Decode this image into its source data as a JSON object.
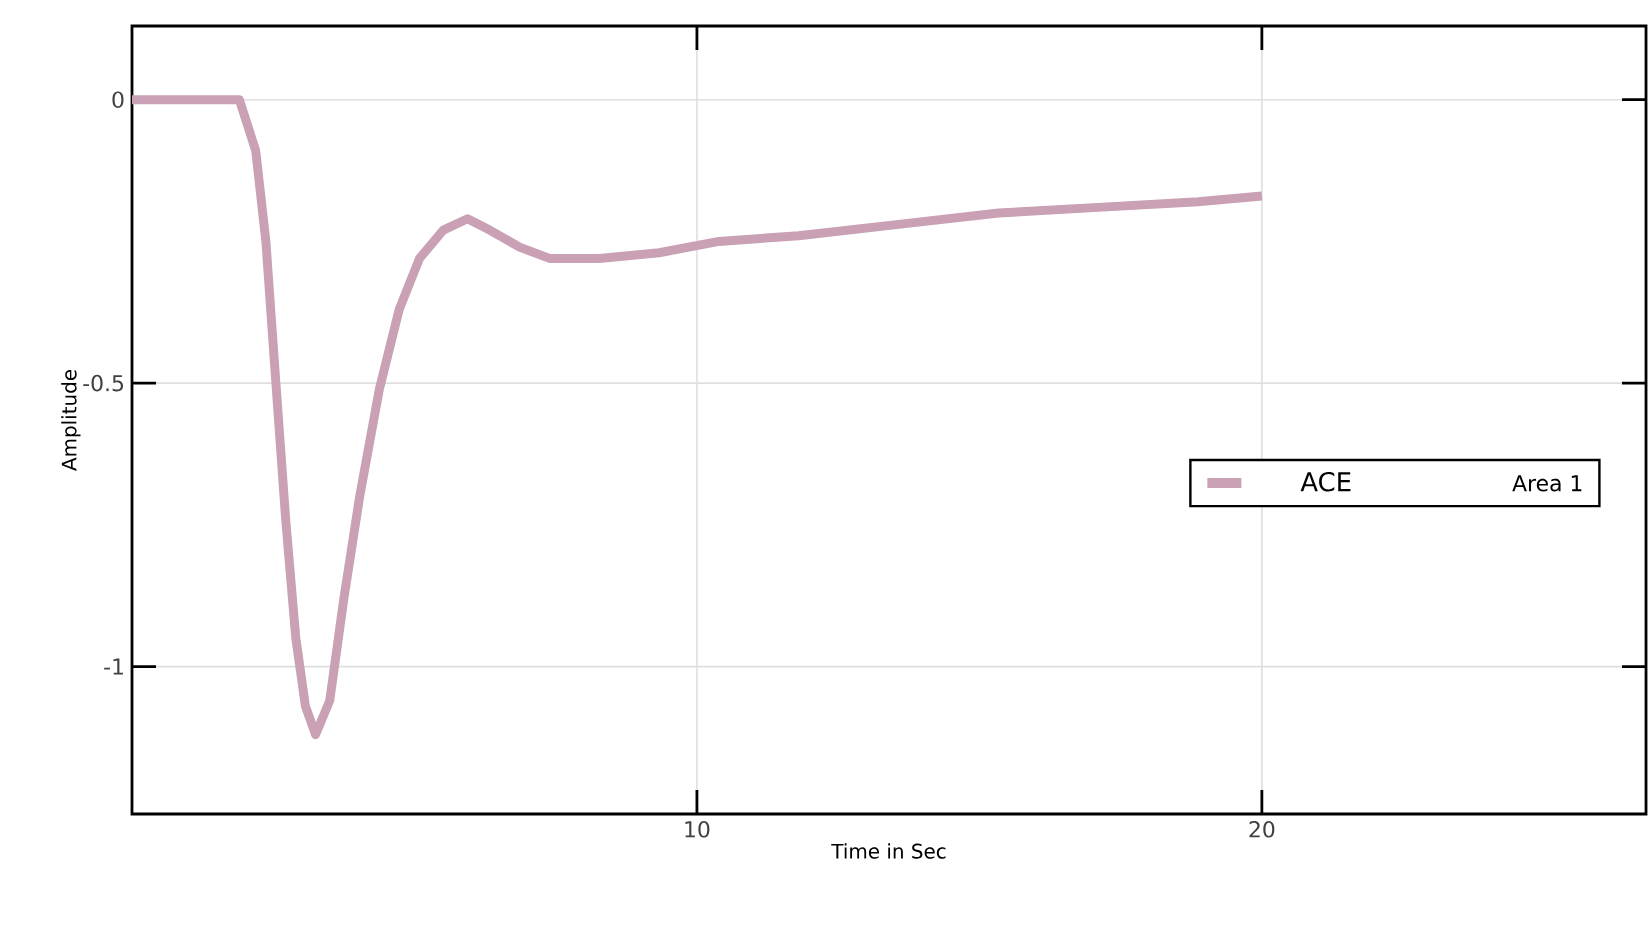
{
  "chart_data": {
    "type": "line",
    "xlabel": "Time in Sec",
    "ylabel": "Amplitude",
    "legend_title": "Area 1",
    "xlim": [
      0,
      26.8
    ],
    "ylim": [
      -1.26,
      0.13
    ],
    "xticks": [
      10,
      20
    ],
    "yticks": [
      -1,
      -0.5,
      0
    ],
    "grid": true,
    "legend": "right",
    "line_style": "solid",
    "series": [
      {
        "name": "ACE",
        "color": "#c9a0b4",
        "x": [
          0,
          1.9,
          2.19,
          2.37,
          2.54,
          2.72,
          2.9,
          3.07,
          3.25,
          3.5,
          3.75,
          4.03,
          4.38,
          4.73,
          5.09,
          5.51,
          5.94,
          6.33,
          6.86,
          7.39,
          8.27,
          9.33,
          10.39,
          11.8,
          13.57,
          15.34,
          17.1,
          18.87,
          20
        ],
        "values": [
          0,
          0,
          -0.09,
          -0.25,
          -0.49,
          -0.74,
          -0.95,
          -1.07,
          -1.12,
          -1.06,
          -0.88,
          -0.7,
          -0.51,
          -0.37,
          -0.28,
          -0.23,
          -0.21,
          -0.23,
          -0.26,
          -0.28,
          -0.28,
          -0.27,
          -0.25,
          -0.24,
          -0.22,
          -0.2,
          -0.19,
          -0.18,
          -0.17
        ]
      }
    ]
  }
}
